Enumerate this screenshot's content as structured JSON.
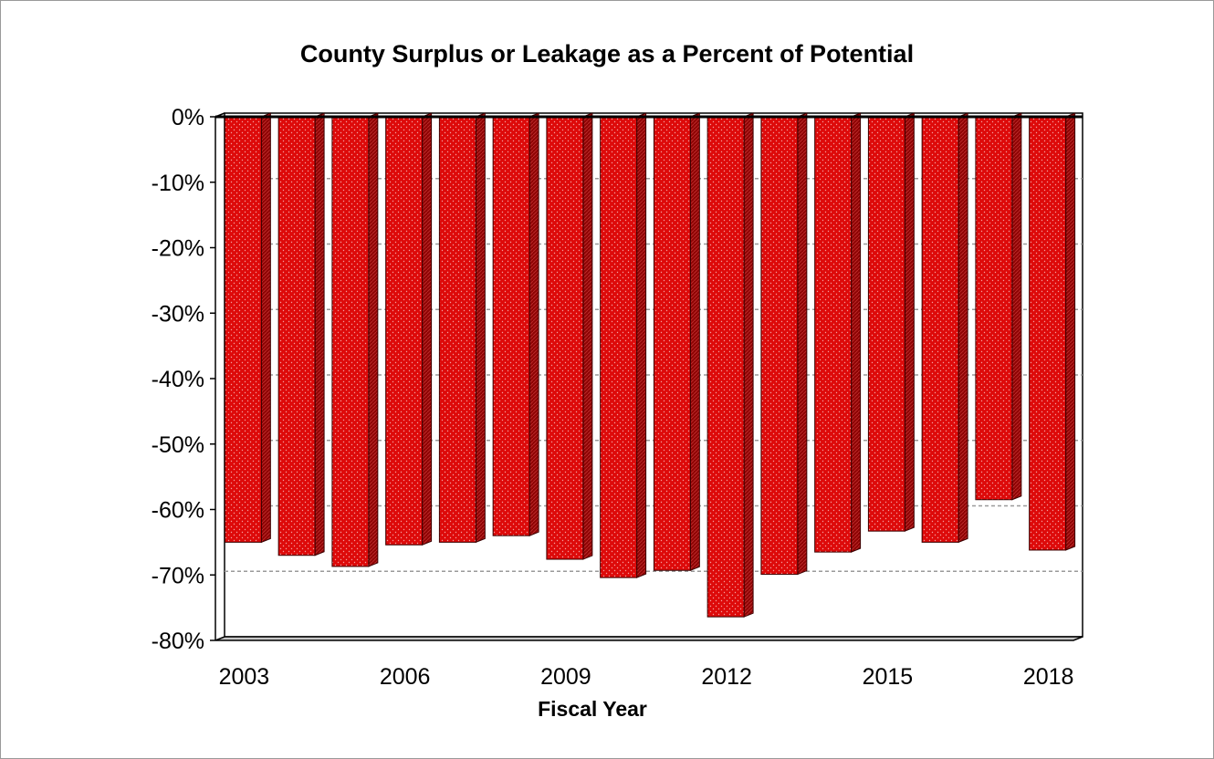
{
  "chart_data": {
    "type": "bar",
    "title": "County Surplus or Leakage as a Percent of Potential",
    "xlabel": "Fiscal Year",
    "ylabel": "",
    "categories": [
      "2003",
      "2004",
      "2005",
      "2006",
      "2007",
      "2008",
      "2009",
      "2010",
      "2011",
      "2012",
      "2013",
      "2014",
      "2015",
      "2016",
      "2017",
      "2018"
    ],
    "values": [
      -65,
      -67,
      -68.7,
      -65.4,
      -65,
      -64,
      -67.6,
      -70.4,
      -69.3,
      -76.4,
      -69.9,
      -66.5,
      -63.3,
      -65,
      -58.5,
      -66.2
    ],
    "x_tick_labels": [
      "2003",
      "2006",
      "2009",
      "2012",
      "2015",
      "2018"
    ],
    "y_tick_labels": [
      "0%",
      "-10%",
      "-20%",
      "-30%",
      "-40%",
      "-50%",
      "-60%",
      "-70%",
      "-80%"
    ],
    "ylim": [
      -80,
      0
    ],
    "grid": "horizontal dashed",
    "legend": "none",
    "bar_color": "#dd0a0a",
    "bar_side_color": "#8f0404"
  }
}
